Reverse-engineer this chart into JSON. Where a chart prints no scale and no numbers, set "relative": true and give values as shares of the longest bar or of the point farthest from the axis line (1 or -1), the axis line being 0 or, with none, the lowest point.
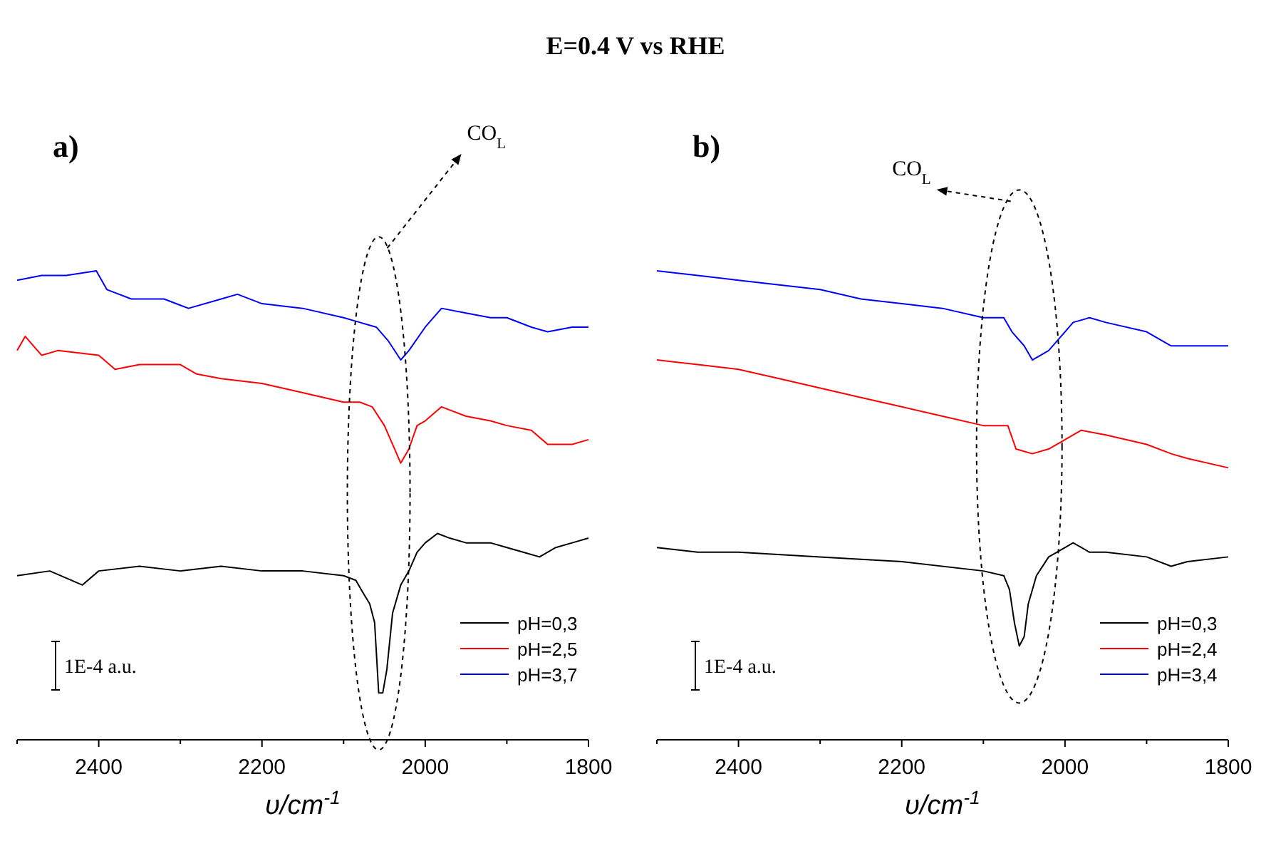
{
  "chart_data": [
    {
      "type": "line",
      "title": "E=0.4 V vs RHE",
      "subtitle": "a)",
      "xlabel": "υ/cm$^{-1}$",
      "relative": true,
      "tick_labels": "x",
      "grid": false,
      "legend": "bottom right",
      "marker": "none",
      "line_style": "solid",
      "xlim": [
        2500,
        1800
      ],
      "xticks": [
        {
          "value": 2500,
          "label": null
        },
        2400,
        {
          "value": 2300,
          "label": null
        },
        2200,
        {
          "value": 2100,
          "label": null
        },
        2000,
        {
          "value": 1900,
          "label": null
        },
        1800
      ],
      "annotations": [
        "CO$_{L}$",
        "1E-4 a.u."
      ],
      "series": [
        {
          "name": "pH=0,3",
          "color": "#000000",
          "x": [
            2500,
            2460,
            2420,
            2400,
            2350,
            2300,
            2250,
            2200,
            2150,
            2100,
            2085,
            2075,
            2068,
            2062,
            2057,
            2052,
            2047,
            2040,
            2030,
            2020,
            2010,
            2000,
            1985,
            1970,
            1950,
            1920,
            1900,
            1880,
            1860,
            1840,
            1820,
            1800
          ],
          "values": [
            0.35,
            0.36,
            0.33,
            0.36,
            0.37,
            0.36,
            0.37,
            0.36,
            0.36,
            0.35,
            0.34,
            0.31,
            0.29,
            0.25,
            0.1,
            0.1,
            0.15,
            0.27,
            0.33,
            0.36,
            0.4,
            0.42,
            0.44,
            0.43,
            0.42,
            0.42,
            0.41,
            0.4,
            0.39,
            0.41,
            0.42,
            0.43
          ]
        },
        {
          "name": "pH=2,5",
          "color": "#ff0000",
          "x": [
            2500,
            2490,
            2470,
            2450,
            2400,
            2380,
            2350,
            2300,
            2280,
            2250,
            2200,
            2150,
            2100,
            2080,
            2065,
            2050,
            2040,
            2030,
            2020,
            2010,
            2000,
            1980,
            1950,
            1920,
            1900,
            1870,
            1850,
            1820,
            1800
          ],
          "values": [
            0.83,
            0.86,
            0.82,
            0.83,
            0.82,
            0.79,
            0.8,
            0.8,
            0.78,
            0.77,
            0.76,
            0.74,
            0.72,
            0.72,
            0.71,
            0.67,
            0.63,
            0.59,
            0.62,
            0.67,
            0.68,
            0.71,
            0.69,
            0.68,
            0.67,
            0.66,
            0.63,
            0.63,
            0.64
          ]
        },
        {
          "name": "pH=3,7",
          "color": "#0000ff",
          "x": [
            2500,
            2470,
            2440,
            2403,
            2390,
            2360,
            2320,
            2290,
            2250,
            2230,
            2200,
            2150,
            2100,
            2080,
            2060,
            2045,
            2030,
            2020,
            2000,
            1980,
            1950,
            1920,
            1900,
            1870,
            1850,
            1820,
            1800
          ],
          "values": [
            0.98,
            0.99,
            0.99,
            1,
            0.96,
            0.94,
            0.94,
            0.92,
            0.94,
            0.95,
            0.93,
            0.92,
            0.9,
            0.89,
            0.88,
            0.85,
            0.81,
            0.83,
            0.88,
            0.92,
            0.91,
            0.9,
            0.9,
            0.88,
            0.87,
            0.88,
            0.88
          ]
        }
      ]
    },
    {
      "type": "line",
      "subtitle": "b)",
      "xlabel": "υ/cm$^{-1}$",
      "relative": true,
      "tick_labels": "x",
      "grid": false,
      "legend": "bottom right",
      "marker": "none",
      "line_style": "solid",
      "xlim": [
        2500,
        1800
      ],
      "xticks": [
        {
          "value": 2500,
          "label": null
        },
        2400,
        {
          "value": 2300,
          "label": null
        },
        2200,
        {
          "value": 2100,
          "label": null
        },
        2000,
        {
          "value": 1900,
          "label": null
        },
        1800
      ],
      "annotations": [
        "CO$_{L}$",
        "1E-4 a.u."
      ],
      "series": [
        {
          "name": "pH=0,3",
          "color": "#000000",
          "x": [
            2500,
            2450,
            2400,
            2300,
            2200,
            2100,
            2075,
            2068,
            2062,
            2056,
            2050,
            2045,
            2035,
            2020,
            2010,
            1990,
            1970,
            1950,
            1900,
            1870,
            1850,
            1800
          ],
          "values": [
            0.41,
            0.4,
            0.4,
            0.39,
            0.38,
            0.36,
            0.35,
            0.32,
            0.25,
            0.2,
            0.22,
            0.29,
            0.35,
            0.39,
            0.4,
            0.42,
            0.4,
            0.4,
            0.39,
            0.37,
            0.38,
            0.39
          ]
        },
        {
          "name": "pH=2,4",
          "color": "#ff0000",
          "x": [
            2500,
            2450,
            2400,
            2350,
            2300,
            2250,
            2200,
            2150,
            2100,
            2080,
            2070,
            2060,
            2040,
            2020,
            2000,
            1980,
            1950,
            1900,
            1870,
            1850,
            1800
          ],
          "values": [
            0.81,
            0.8,
            0.79,
            0.77,
            0.75,
            0.73,
            0.71,
            0.69,
            0.67,
            0.67,
            0.67,
            0.62,
            0.61,
            0.62,
            0.64,
            0.66,
            0.65,
            0.63,
            0.61,
            0.6,
            0.58
          ]
        },
        {
          "name": "pH=3,4",
          "color": "#0000ff",
          "x": [
            2500,
            2450,
            2400,
            2350,
            2300,
            2250,
            2200,
            2150,
            2100,
            2075,
            2065,
            2050,
            2040,
            2020,
            2000,
            1990,
            1970,
            1950,
            1900,
            1870,
            1850,
            1800
          ],
          "values": [
            1,
            0.99,
            0.98,
            0.97,
            0.96,
            0.94,
            0.93,
            0.92,
            0.9,
            0.9,
            0.87,
            0.84,
            0.81,
            0.83,
            0.87,
            0.89,
            0.9,
            0.89,
            0.87,
            0.84,
            0.84,
            0.84
          ]
        }
      ]
    }
  ]
}
